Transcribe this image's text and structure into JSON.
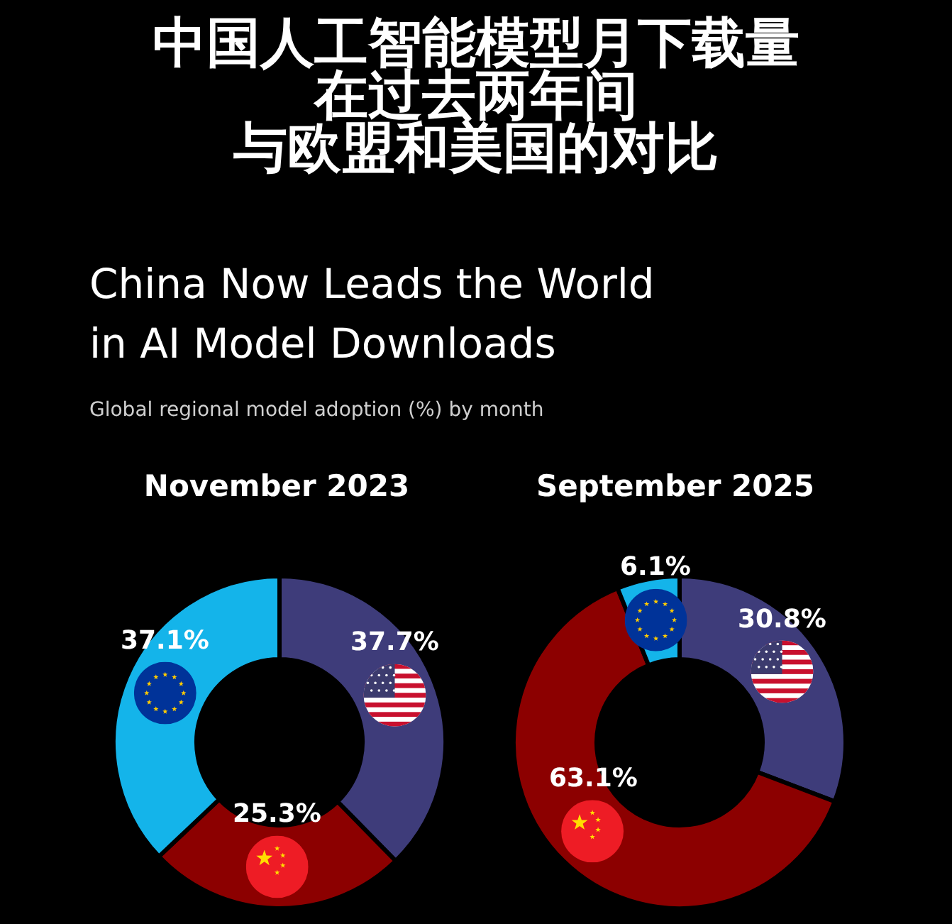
{
  "chart_data": [
    {
      "type": "other",
      "title": "China Now Leads the World in AI Model Downloads",
      "subtitle": "Global regional model adoption (%) by month",
      "annotations": [
        "中国人工智能模型月下载量",
        "在过去两年间",
        "与欧盟和美国的对比"
      ]
    },
    {
      "type": "donut",
      "title": "November 2023",
      "categories": [
        null,
        null,
        null
      ],
      "values": [
        37.7,
        25.3,
        37.1
      ],
      "colors": [
        "#3e3c7a",
        "#8c0000",
        "#14b4ea"
      ],
      "value_labels": [
        "37.7%",
        "25.3%",
        "37.1%"
      ]
    },
    {
      "type": "donut",
      "title": "September 2025",
      "categories": [
        null,
        null,
        null
      ],
      "values": [
        30.8,
        63.1,
        6.1
      ],
      "colors": [
        "#3e3c7a",
        "#8c0000",
        "#14b4ea"
      ],
      "value_labels": [
        "30.8%",
        "63.1%",
        "6.1%"
      ]
    }
  ]
}
